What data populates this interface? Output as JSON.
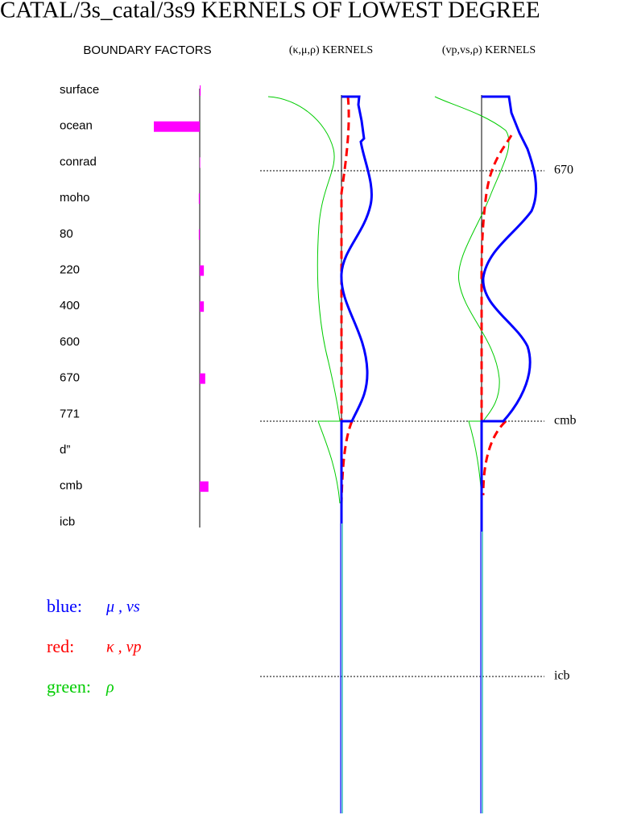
{
  "title": "CATAL/3s_catal/3s9 KERNELS OF LOWEST DEGREE",
  "headers": {
    "boundary_factors": "BOUNDARY FACTORS",
    "kappa_mu_rho": "(κ,μ,ρ) KERNELS",
    "vp_vs_rho": "(vp,vs,ρ) KERNELS"
  },
  "boundary_factors": {
    "labels": [
      "surface",
      "ocean",
      "conrad",
      "moho",
      "80",
      "220",
      "400",
      "600",
      "670",
      "771",
      "d”",
      "cmb",
      "icb"
    ],
    "values": [
      0.02,
      -1.0,
      0.01,
      -0.02,
      -0.02,
      0.09,
      0.09,
      0,
      0.12,
      0,
      0,
      0.19,
      0
    ],
    "color": "#ff00ff"
  },
  "depth_markers": [
    "670",
    "cmb",
    "icb"
  ],
  "legend": [
    {
      "label": "blue:",
      "symbols": "μ , vs",
      "color": "#0000ff"
    },
    {
      "label": "red:",
      "symbols": "κ , vp",
      "color": "#ff0000"
    },
    {
      "label": "green:",
      "symbols": "ρ",
      "color": "#00cc00"
    }
  ]
}
